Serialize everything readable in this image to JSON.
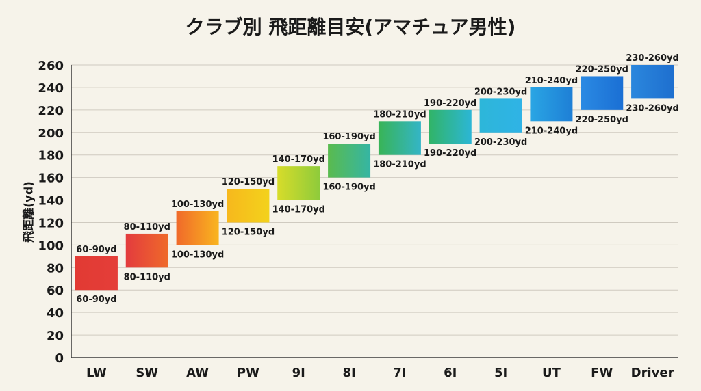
{
  "chart_data": {
    "type": "bar",
    "title": "クラブ別 飛距離目安(アマチュア男性)",
    "xlabel": "",
    "ylabel": "飛距離(yd)",
    "ylim": [
      0,
      260
    ],
    "yticks": [
      "0",
      "20",
      "40",
      "60",
      "80",
      "100",
      "120",
      "140",
      "160",
      "180",
      "200",
      "220",
      "240",
      "260"
    ],
    "grid": true,
    "categories": [
      "LW",
      "SW",
      "AW",
      "PW",
      "9I",
      "8I",
      "7I",
      "6I",
      "5I",
      "UT",
      "FW",
      "Driver"
    ],
    "ranges": [
      [
        60,
        90
      ],
      [
        80,
        110
      ],
      [
        100,
        130
      ],
      [
        120,
        150
      ],
      [
        140,
        170
      ],
      [
        160,
        190
      ],
      [
        180,
        210
      ],
      [
        190,
        220
      ],
      [
        200,
        230
      ],
      [
        210,
        240
      ],
      [
        220,
        250
      ],
      [
        230,
        260
      ]
    ],
    "range_labels": [
      "60-90yd",
      "80-110yd",
      "100-130yd",
      "120-150yd",
      "140-170yd",
      "160-190yd",
      "180-210yd",
      "190-220yd",
      "200-230yd",
      "210-240yd",
      "220-250yd",
      "230-260yd"
    ],
    "colors": [
      [
        "#e23a33",
        "#e43e39"
      ],
      [
        "#e33b3e",
        "#ef6a2a"
      ],
      [
        "#f0692a",
        "#f9b51f"
      ],
      [
        "#f7b81d",
        "#f3d21b"
      ],
      [
        "#d7dc2a",
        "#8ecb3b"
      ],
      [
        "#5abb4e",
        "#35b5a4"
      ],
      [
        "#38b456",
        "#34b5c7"
      ],
      [
        "#31b467",
        "#2cb6d6"
      ],
      [
        "#2db6d9",
        "#2fb3e6"
      ],
      [
        "#2aa6e4",
        "#1e7fd6"
      ],
      [
        "#2b8ae3",
        "#1a6fd4"
      ],
      [
        "#2b87dd",
        "#1e6fcf"
      ]
    ]
  }
}
